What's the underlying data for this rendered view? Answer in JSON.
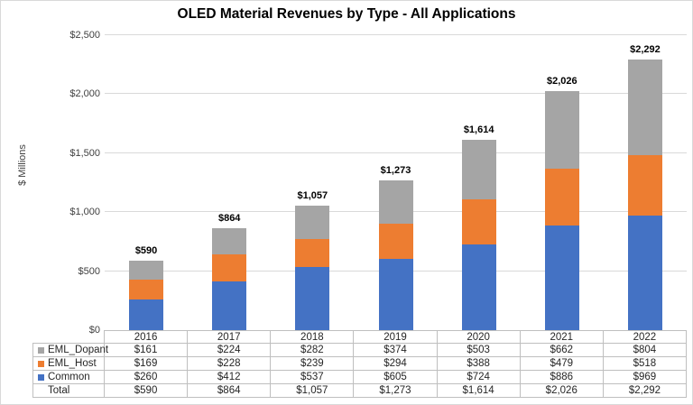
{
  "chart_data": {
    "type": "bar",
    "stacked": true,
    "title": "OLED Material Revenues by Type - All Applications",
    "xlabel": "",
    "ylabel": "$ Millions",
    "categories": [
      "2016",
      "2017",
      "2018",
      "2019",
      "2020",
      "2021",
      "2022"
    ],
    "series": [
      {
        "name": "Common",
        "color": "#4472C4",
        "values": [
          260,
          412,
          537,
          605,
          724,
          886,
          969
        ]
      },
      {
        "name": "EML_Host",
        "color": "#ED7D31",
        "values": [
          169,
          228,
          239,
          294,
          388,
          479,
          518
        ]
      },
      {
        "name": "EML_Dopant",
        "color": "#A5A5A5",
        "values": [
          161,
          224,
          282,
          374,
          503,
          662,
          804
        ]
      }
    ],
    "totals": [
      590,
      864,
      1057,
      1273,
      1614,
      2026,
      2292
    ],
    "total_labels": [
      "$590",
      "$864",
      "$1,057",
      "$1,273",
      "$1,614",
      "$2,026",
      "$2,292"
    ],
    "ylim": [
      0,
      2500
    ],
    "ytick_step": 500,
    "ytick_labels": [
      "$0",
      "$500",
      "$1,000",
      "$1,500",
      "$2,000",
      "$2,500"
    ],
    "grid": true,
    "legend_position": "data-table-left"
  },
  "table": {
    "rows": [
      {
        "label": "EML_Dopant",
        "marker_color": "#A5A5A5",
        "cells": [
          "$161",
          "$224",
          "$282",
          "$374",
          "$503",
          "$662",
          "$804"
        ]
      },
      {
        "label": "EML_Host",
        "marker_color": "#ED7D31",
        "cells": [
          "$169",
          "$228",
          "$239",
          "$294",
          "$388",
          "$479",
          "$518"
        ]
      },
      {
        "label": "Common",
        "marker_color": "#4472C4",
        "cells": [
          "$260",
          "$412",
          "$537",
          "$605",
          "$724",
          "$886",
          "$969"
        ]
      },
      {
        "label": "Total",
        "marker_color": null,
        "cells": [
          "$590",
          "$864",
          "$1,057",
          "$1,273",
          "$1,614",
          "$2,026",
          "$2,292"
        ]
      }
    ]
  },
  "colors": {
    "grid": "#D9D9D9",
    "axis": "#BFBFBF",
    "table_border": "#BFBFBF",
    "figure_border": "#D9D9D9",
    "title_text": "#000000",
    "tick_text": "#404040",
    "data_label_text": "#000000"
  }
}
